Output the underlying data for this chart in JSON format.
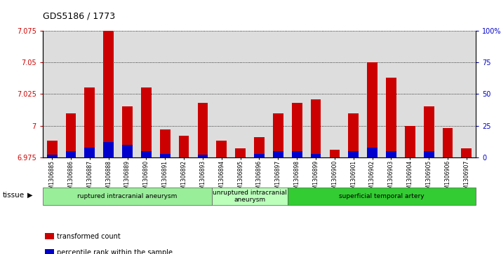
{
  "title": "GDS5186 / 1773",
  "samples": [
    "GSM1306885",
    "GSM1306886",
    "GSM1306887",
    "GSM1306888",
    "GSM1306889",
    "GSM1306890",
    "GSM1306891",
    "GSM1306892",
    "GSM1306893",
    "GSM1306894",
    "GSM1306895",
    "GSM1306896",
    "GSM1306897",
    "GSM1306898",
    "GSM1306899",
    "GSM1306900",
    "GSM1306901",
    "GSM1306902",
    "GSM1306903",
    "GSM1306904",
    "GSM1306905",
    "GSM1306906",
    "GSM1306907"
  ],
  "transformed_count": [
    6.988,
    7.01,
    7.03,
    7.075,
    7.015,
    7.03,
    6.997,
    6.992,
    7.018,
    6.988,
    6.982,
    6.991,
    7.01,
    7.018,
    7.021,
    6.981,
    7.01,
    7.05,
    7.038,
    7.0,
    7.015,
    6.998,
    6.982
  ],
  "percentile_rank": [
    2,
    5,
    8,
    12,
    10,
    5,
    3,
    0,
    2,
    0,
    0,
    3,
    5,
    5,
    3,
    0,
    5,
    8,
    5,
    0,
    5,
    0,
    0
  ],
  "ylim_left": [
    6.975,
    7.075
  ],
  "ylim_right": [
    0,
    100
  ],
  "yticks_left": [
    6.975,
    7.0,
    7.025,
    7.05,
    7.075
  ],
  "yticks_right": [
    0,
    25,
    50,
    75,
    100
  ],
  "ytick_labels_left": [
    "6.975",
    "7",
    "7.025",
    "7.05",
    "7.075"
  ],
  "ytick_labels_right": [
    "0",
    "25",
    "50",
    "75",
    "100%"
  ],
  "bar_color": "#cc0000",
  "pct_color": "#0000cc",
  "plot_bg": "#dddddd",
  "groups": [
    {
      "label": "ruptured intracranial aneurysm",
      "start": 0,
      "end": 9,
      "color": "#99ee99"
    },
    {
      "label": "unruptured intracranial\naneurysm",
      "start": 9,
      "end": 13,
      "color": "#bbffbb"
    },
    {
      "label": "superficial temporal artery",
      "start": 13,
      "end": 23,
      "color": "#33cc33"
    }
  ],
  "legend_items": [
    {
      "label": "transformed count",
      "color": "#cc0000"
    },
    {
      "label": "percentile rank within the sample",
      "color": "#0000cc"
    }
  ],
  "tissue_label": "tissue",
  "bar_width": 0.55
}
